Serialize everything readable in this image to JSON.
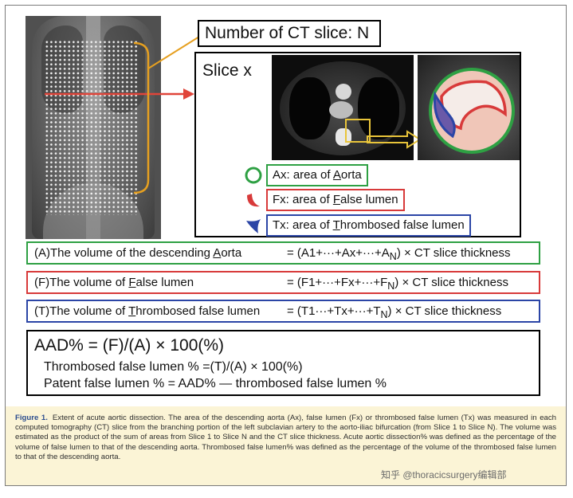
{
  "number_box": "Number of CT slice: N",
  "slice_label": "Slice x",
  "legend": [
    {
      "pre": "Ax: area of ",
      "ul": "A",
      "post": "orta",
      "color": "#2ea043"
    },
    {
      "pre": "Fx: area of ",
      "ul": "F",
      "post": "alse lumen",
      "color": "#d83a3a"
    },
    {
      "pre": "Tx: area of ",
      "ul": "T",
      "post": "hrombosed false lumen",
      "color": "#2b45a6"
    }
  ],
  "formulas": [
    {
      "lhs_pre": "(A)The volume of the descending ",
      "lhs_ul": "A",
      "lhs_post": "orta",
      "rhs_main": "= (A1+···+Ax+···+A",
      "rhs_sub": "N",
      "rhs_end": ") × CT slice thickness",
      "color": "#2ea043"
    },
    {
      "lhs_pre": "(F)The volume of ",
      "lhs_ul": "F",
      "lhs_post": "alse lumen",
      "rhs_main": "= (F1+···+Fx+···+F",
      "rhs_sub": "N",
      "rhs_end": ") × CT slice thickness",
      "color": "#d83a3a"
    },
    {
      "lhs_pre": "(T)The volume of ",
      "lhs_ul": "T",
      "lhs_post": "hrombosed false lumen",
      "rhs_main": "= (T1···+Tx+···+T",
      "rhs_sub": "N",
      "rhs_end": ") × CT slice thickness",
      "color": "#2b45a6"
    }
  ],
  "aad": {
    "line1": "AAD% = (F)/(A) × 100(%)",
    "line2": "Thrombosed false lumen % =(T)/(A) × 100(%)",
    "line3": "Patent false lumen % = AAD% — thrombosed false lumen %"
  },
  "caption": {
    "label": "Figure 1.",
    "text": "Extent of acute aortic dissection. The area of the descending aorta (Ax), false lumen (Fx) or thrombosed false lumen (Tx) was measured in each computed tomography (CT) slice from the branching portion of the left subclavian artery to the aorto-iliac bifurcation (from Slice 1 to Slice N). The volume was estimated as the product of the sum of areas from Slice 1 to Slice N and the CT slice thickness. Acute aortic dissection% was defined as the percentage of the volume of false lumen to that of the descending aorta. Thrombosed false lumen% was defined as the percentage of the volume of the thrombosed false lumen to that of the descending aorta."
  },
  "watermark": "知乎 @thoracicsurgery编辑部",
  "colors": {
    "green": "#2ea043",
    "red": "#d83a3a",
    "blue": "#2b45a6",
    "orange": "#e6a020",
    "arrow_red": "#e0453a"
  }
}
